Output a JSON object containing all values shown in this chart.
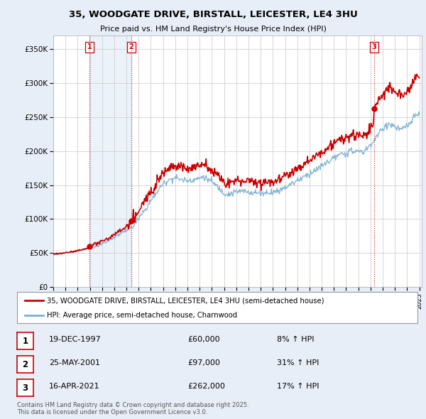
{
  "title_line1": "35, WOODGATE DRIVE, BIRSTALL, LEICESTER, LE4 3HU",
  "title_line2": "Price paid vs. HM Land Registry's House Price Index (HPI)",
  "ylim": [
    0,
    370000
  ],
  "yticks": [
    0,
    50000,
    100000,
    150000,
    200000,
    250000,
    300000,
    350000
  ],
  "ytick_labels": [
    "£0",
    "£50K",
    "£100K",
    "£150K",
    "£200K",
    "£250K",
    "£300K",
    "£350K"
  ],
  "sale_color": "#cc0000",
  "hpi_color": "#7ab0d4",
  "background_color": "#e8eef8",
  "plot_bg_color": "#ffffff",
  "grid_color": "#d0d0d0",
  "shade_color": "#dce8f5",
  "legend_label_sale": "35, WOODGATE DRIVE, BIRSTALL, LEICESTER, LE4 3HU (semi-detached house)",
  "legend_label_hpi": "HPI: Average price, semi-detached house, Charnwood",
  "sale_prices": [
    60000,
    97000,
    262000
  ],
  "sale_labels": [
    "1",
    "2",
    "3"
  ],
  "sale_pct": [
    "8% ↑ HPI",
    "31% ↑ HPI",
    "17% ↑ HPI"
  ],
  "table_dates": [
    "19-DEC-1997",
    "25-MAY-2001",
    "16-APR-2021"
  ],
  "table_prices": [
    "£60,000",
    "£97,000",
    "£262,000"
  ],
  "footnote": "Contains HM Land Registry data © Crown copyright and database right 2025.\nThis data is licensed under the Open Government Licence v3.0.",
  "sale_years": [
    1997.96,
    2001.4,
    2021.29
  ]
}
